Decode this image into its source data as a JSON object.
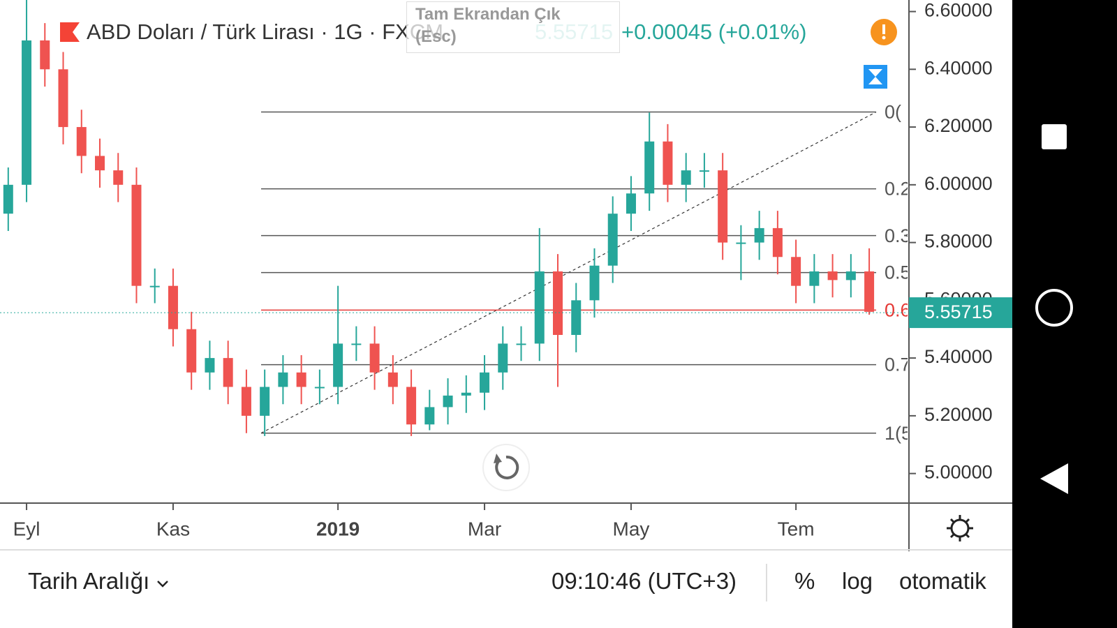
{
  "header": {
    "symbol": "ABD Doları / Türk Lirası · 1G · FXCM",
    "change": "+0.00045 (+0.01%)",
    "tooltip": [
      "Tam Ekrandan Çık",
      "(Esc)"
    ]
  },
  "chart_data": {
    "type": "candlestick",
    "categories": [
      null,
      "Eyl",
      null,
      null,
      null,
      null,
      null,
      null,
      null,
      "Kas",
      null,
      null,
      null,
      null,
      null,
      null,
      null,
      null,
      "2019",
      null,
      null,
      null,
      null,
      null,
      null,
      null,
      "Mar",
      null,
      null,
      null,
      null,
      null,
      null,
      null,
      "May",
      null,
      null,
      null,
      null,
      null,
      null,
      null,
      null,
      "Tem",
      null,
      null,
      null,
      null
    ],
    "open": [
      5.9,
      6.0,
      6.5,
      6.4,
      6.2,
      6.1,
      6.05,
      6.0,
      5.65,
      5.65,
      5.5,
      5.35,
      5.4,
      5.3,
      5.2,
      5.3,
      5.35,
      5.3,
      5.3,
      5.45,
      5.45,
      5.35,
      5.3,
      5.17,
      5.23,
      5.27,
      5.28,
      5.35,
      5.45,
      5.45,
      5.7,
      5.48,
      5.6,
      5.72,
      5.9,
      5.97,
      6.15,
      6.0,
      6.05,
      6.05,
      5.8,
      5.8,
      5.85,
      5.75,
      5.65,
      5.7,
      5.67,
      5.7
    ],
    "high": [
      6.06,
      6.64,
      6.56,
      6.46,
      6.26,
      6.16,
      6.11,
      6.06,
      5.71,
      5.71,
      5.56,
      5.46,
      5.46,
      5.36,
      5.36,
      5.41,
      5.41,
      5.36,
      5.65,
      5.51,
      5.51,
      5.41,
      5.36,
      5.29,
      5.33,
      5.34,
      5.41,
      5.51,
      5.51,
      5.85,
      5.76,
      5.66,
      5.78,
      5.96,
      6.03,
      6.25,
      6.21,
      6.11,
      6.11,
      6.11,
      5.86,
      5.91,
      5.91,
      5.81,
      5.76,
      5.76,
      5.76,
      5.78
    ],
    "low": [
      5.84,
      5.94,
      6.34,
      6.14,
      6.04,
      5.99,
      5.94,
      5.59,
      5.59,
      5.44,
      5.29,
      5.29,
      5.24,
      5.14,
      5.13,
      5.24,
      5.24,
      5.24,
      5.24,
      5.39,
      5.29,
      5.24,
      5.13,
      5.15,
      5.17,
      5.21,
      5.22,
      5.29,
      5.39,
      5.39,
      5.3,
      5.42,
      5.54,
      5.66,
      5.84,
      5.91,
      5.94,
      5.94,
      5.99,
      5.74,
      5.67,
      5.74,
      5.69,
      5.59,
      5.59,
      5.61,
      5.61,
      5.55
    ],
    "close": [
      6.0,
      6.5,
      6.4,
      6.2,
      6.1,
      6.05,
      6.0,
      5.65,
      5.65,
      5.5,
      5.35,
      5.4,
      5.3,
      5.2,
      5.3,
      5.35,
      5.3,
      5.3,
      5.45,
      5.45,
      5.35,
      5.3,
      5.17,
      5.23,
      5.27,
      5.28,
      5.35,
      5.45,
      5.45,
      5.7,
      5.48,
      5.6,
      5.72,
      5.9,
      5.97,
      6.15,
      6.0,
      6.05,
      6.05,
      5.8,
      5.8,
      5.85,
      5.75,
      5.65,
      5.7,
      5.67,
      5.7,
      5.56
    ],
    "up_color": "#26a69a",
    "down_color": "#ef5350",
    "last_price": 5.55715,
    "last_price_color": "#26a69a",
    "ylim": [
      4.9,
      6.64
    ],
    "yticks": [
      {
        "value": 5.0,
        "label": "5.00000"
      },
      {
        "value": 5.2,
        "label": "5.20000"
      },
      {
        "value": 5.4,
        "label": "5.40000"
      },
      {
        "value": 5.6,
        "label": "5.60000"
      },
      {
        "value": 5.8,
        "label": "5.80000"
      },
      {
        "value": 6.0,
        "label": "6.00000"
      },
      {
        "value": 6.2,
        "label": "6.20000"
      },
      {
        "value": 6.4,
        "label": "6.40000"
      },
      {
        "value": 6.6,
        "label": "6.60000"
      }
    ],
    "fib_levels": [
      {
        "label": "0(",
        "price": 6.252,
        "color": "#555555"
      },
      {
        "label": "0.2",
        "price": 5.986,
        "color": "#555555"
      },
      {
        "label": "0.3",
        "price": 5.824,
        "color": "#555555"
      },
      {
        "label": "0.5",
        "price": 5.696,
        "color": "#555555"
      },
      {
        "label": "0.6",
        "price": 5.566,
        "color": "#e53935"
      },
      {
        "label": "0.7",
        "price": 5.377,
        "color": "#555555"
      },
      {
        "label": "1(5",
        "price": 5.14,
        "color": "#555555"
      }
    ]
  },
  "footer": {
    "range": "Tarih Aralığı",
    "time": "09:10:46 (UTC+3)",
    "percent": "%",
    "log": "log",
    "auto": "otomatik"
  }
}
